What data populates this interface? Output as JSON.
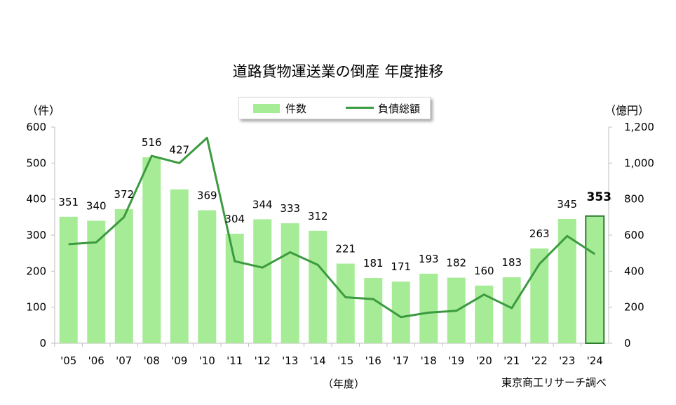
{
  "chart_data": {
    "type": "bar",
    "title": "道路貨物運送業の倒産 年度推移",
    "left_unit": "（件）",
    "right_unit": "（億円）",
    "xlabel": "（年度）",
    "source": "東京商工リサーチ調べ",
    "categories": [
      "'05",
      "'06",
      "'07",
      "'08",
      "'09",
      "'10",
      "'11",
      "'12",
      "'13",
      "'14",
      "'15",
      "'16",
      "'17",
      "'18",
      "'19",
      "'20",
      "'21",
      "'22",
      "'23",
      "'24"
    ],
    "y_left_ticks": [
      "0",
      "100",
      "200",
      "300",
      "400",
      "500",
      "600"
    ],
    "y_right_ticks": [
      "0",
      "200",
      "400",
      "600",
      "800",
      "1,000",
      "1,200"
    ],
    "ylim_left": [
      0,
      600
    ],
    "ylim_right": [
      0,
      1200
    ],
    "highlight_index": 19,
    "series": [
      {
        "name": "件数",
        "type": "bar",
        "axis": "left",
        "color": "#a6eb96",
        "values": [
          351,
          340,
          372,
          516,
          427,
          369,
          304,
          344,
          333,
          312,
          221,
          181,
          171,
          193,
          182,
          160,
          183,
          263,
          345,
          353
        ]
      },
      {
        "name": "負債総額",
        "type": "line",
        "axis": "right",
        "color": "#3c9a40",
        "values": [
          550,
          560,
          700,
          1040,
          1000,
          1140,
          455,
          420,
          505,
          435,
          255,
          245,
          145,
          170,
          180,
          270,
          195,
          440,
          595,
          495
        ]
      }
    ]
  }
}
